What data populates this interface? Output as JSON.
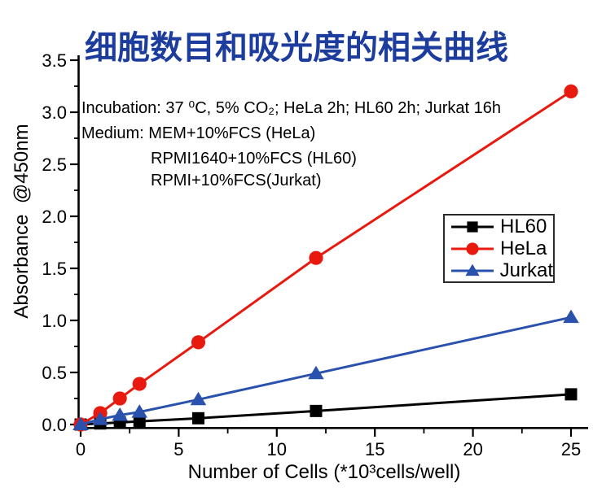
{
  "title": {
    "text": "细胞数目和吸光度的相关曲线",
    "color": "#1d3d9e"
  },
  "annotations": [
    "Incubation: 37 ⁰C, 5% CO₂; HeLa 2h; HL60 2h; Jurkat 16h",
    "Medium: MEM+10%FCS (HeLa)",
    "RPMI1640+10%FCS (HL60)",
    "RPMI+10%FCS(Jurkat)"
  ],
  "chart_data": {
    "type": "line",
    "x": [
      0,
      1,
      2,
      3,
      6,
      12,
      25
    ],
    "series": [
      {
        "name": "HL60",
        "color": "#000000",
        "marker": "square",
        "values": [
          0,
          0.01,
          0.02,
          0.03,
          0.06,
          0.13,
          0.29
        ]
      },
      {
        "name": "HeLa",
        "color": "#e8190f",
        "marker": "circle",
        "values": [
          0,
          0.11,
          0.25,
          0.39,
          0.79,
          1.6,
          3.2
        ]
      },
      {
        "name": "Jurkat",
        "color": "#2a52ad",
        "marker": "triangle",
        "values": [
          0,
          0.05,
          0.09,
          0.12,
          0.24,
          0.49,
          1.03
        ]
      }
    ],
    "xlabel": "Number of Cells (*10³cells/well)",
    "ylabel": "Absorbance  @450nm",
    "xlim": [
      0,
      25
    ],
    "ylim": [
      0,
      3.5
    ],
    "xticks": [
      "0",
      "5",
      "10",
      "15",
      "20",
      "25"
    ],
    "yticks": [
      "0.0",
      "0.5",
      "1.0",
      "1.5",
      "2.0",
      "2.5",
      "3.0",
      "3.5"
    ],
    "grid": false,
    "legend_position": "right-middle",
    "legend_order": [
      "HL60",
      "HeLa",
      "Jurkat"
    ]
  }
}
